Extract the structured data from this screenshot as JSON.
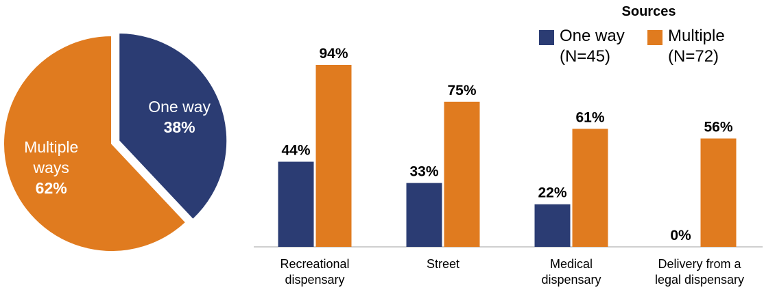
{
  "legend": {
    "title": "Sources",
    "items": [
      {
        "label": "One way",
        "n": "(N=45)",
        "color": "#2b3c73"
      },
      {
        "label": "Multiple",
        "n": "(N=72)",
        "color": "#e07b1f"
      }
    ]
  },
  "chart_data": [
    {
      "type": "pie",
      "slices": [
        {
          "label_lines": [
            "One way"
          ],
          "value": 38,
          "value_label": "38%",
          "color": "#2b3c73",
          "exploded": true
        },
        {
          "label_lines": [
            "Multiple",
            "ways"
          ],
          "value": 62,
          "value_label": "62%",
          "color": "#e07b1f",
          "exploded": false
        }
      ]
    },
    {
      "type": "bar",
      "categories": [
        [
          "Recreational",
          "dispensary"
        ],
        [
          "Street"
        ],
        [
          "Medical",
          "dispensary"
        ],
        [
          "Delivery from a",
          "legal dispensary"
        ]
      ],
      "series": [
        {
          "name": "One way",
          "values": [
            44,
            33,
            22,
            0
          ],
          "labels": [
            "44%",
            "33%",
            "22%",
            "0%"
          ],
          "color": "#2b3c73"
        },
        {
          "name": "Multiple",
          "values": [
            94,
            75,
            61,
            56
          ],
          "labels": [
            "94%",
            "75%",
            "61%",
            "56%"
          ],
          "color": "#e07b1f"
        }
      ],
      "ylim": [
        0,
        100
      ],
      "grid": false,
      "legend_position": "top-right"
    }
  ]
}
